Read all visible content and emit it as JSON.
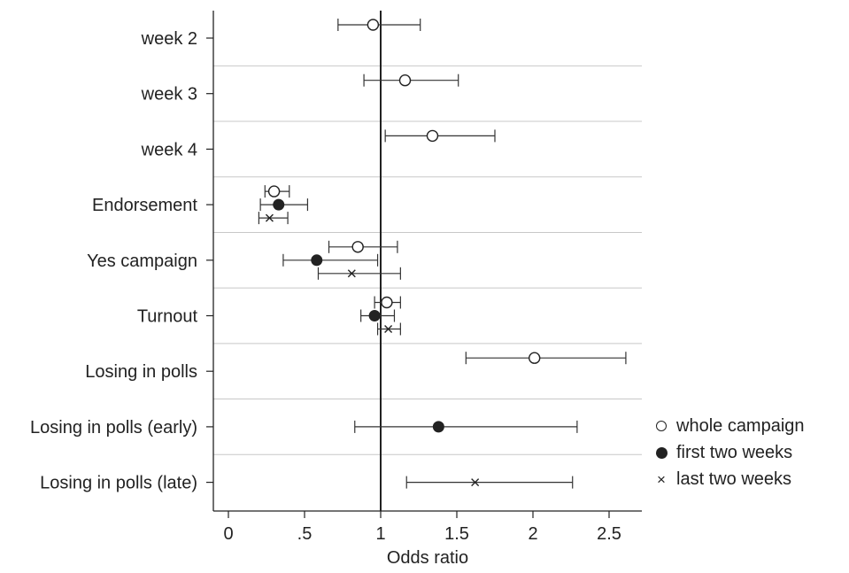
{
  "chart_data": {
    "type": "scatter",
    "xlabel": "Odds ratio",
    "xlim": [
      -0.1,
      2.72
    ],
    "x_ticks": [
      {
        "value": 0,
        "label": "0"
      },
      {
        "value": 0.5,
        "label": ".5"
      },
      {
        "value": 1,
        "label": "1"
      },
      {
        "value": 1.5,
        "label": "1.5"
      },
      {
        "value": 2,
        "label": "2"
      },
      {
        "value": 2.5,
        "label": "2.5"
      }
    ],
    "reference_line": 1,
    "categories": [
      "week 2",
      "week 3",
      "week 4",
      "Endorsement",
      "Yes campaign",
      "Turnout",
      "Losing in polls",
      "Losing in polls (early)",
      "Losing in polls (late)"
    ],
    "series": [
      {
        "name": "whole campaign",
        "marker": "open-circle",
        "points": [
          {
            "category": "week 2",
            "estimate": 0.95,
            "ci": [
              0.72,
              1.26
            ]
          },
          {
            "category": "week 3",
            "estimate": 1.16,
            "ci": [
              0.89,
              1.51
            ]
          },
          {
            "category": "week 4",
            "estimate": 1.34,
            "ci": [
              1.03,
              1.75
            ]
          },
          {
            "category": "Endorsement",
            "estimate": 0.3,
            "ci": [
              0.24,
              0.4
            ]
          },
          {
            "category": "Yes campaign",
            "estimate": 0.85,
            "ci": [
              0.66,
              1.11
            ]
          },
          {
            "category": "Turnout",
            "estimate": 1.04,
            "ci": [
              0.96,
              1.13
            ]
          },
          {
            "category": "Losing in polls",
            "estimate": 2.01,
            "ci": [
              1.56,
              2.61
            ]
          }
        ]
      },
      {
        "name": "first two weeks",
        "marker": "filled-circle",
        "points": [
          {
            "category": "Endorsement",
            "estimate": 0.33,
            "ci": [
              0.21,
              0.52
            ]
          },
          {
            "category": "Yes campaign",
            "estimate": 0.58,
            "ci": [
              0.36,
              0.98
            ]
          },
          {
            "category": "Turnout",
            "estimate": 0.96,
            "ci": [
              0.87,
              1.09
            ]
          },
          {
            "category": "Losing in polls (early)",
            "estimate": 1.38,
            "ci": [
              0.83,
              2.29
            ]
          }
        ]
      },
      {
        "name": "last two weeks",
        "marker": "x",
        "points": [
          {
            "category": "Endorsement",
            "estimate": 0.27,
            "ci": [
              0.2,
              0.39
            ]
          },
          {
            "category": "Yes campaign",
            "estimate": 0.81,
            "ci": [
              0.59,
              1.13
            ]
          },
          {
            "category": "Turnout",
            "estimate": 1.05,
            "ci": [
              0.98,
              1.13
            ]
          },
          {
            "category": "Losing in polls (late)",
            "estimate": 1.62,
            "ci": [
              1.17,
              2.26
            ]
          }
        ]
      }
    ],
    "grid": "horizontal separators",
    "legend_position": "right"
  }
}
